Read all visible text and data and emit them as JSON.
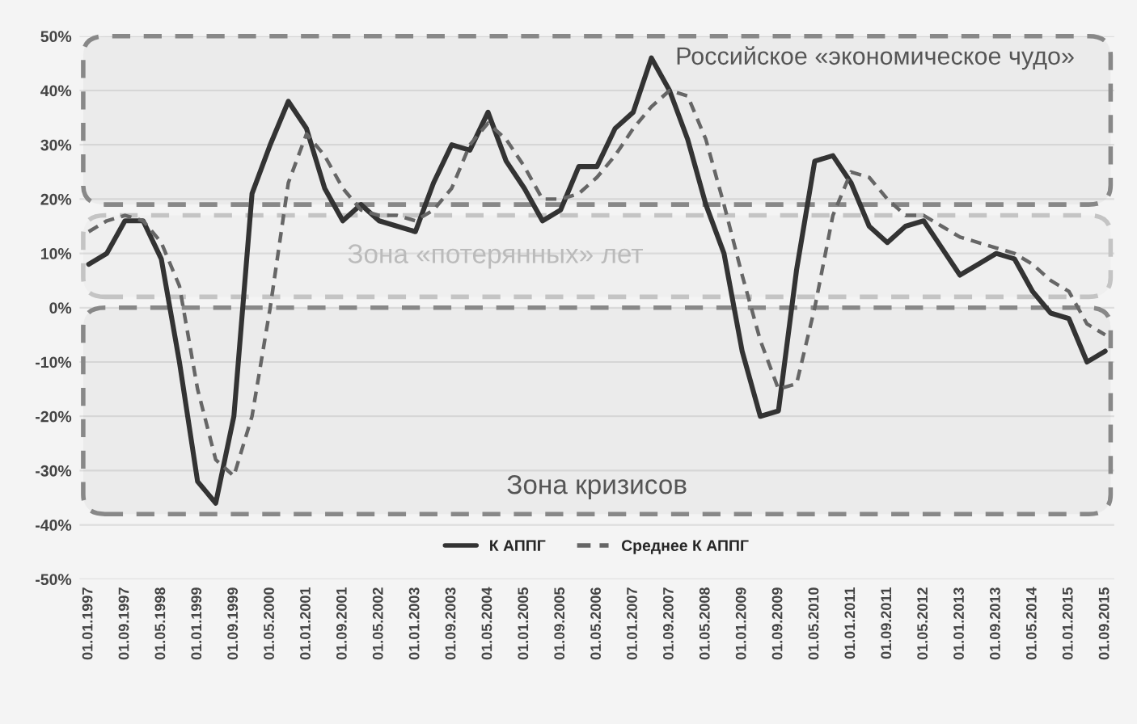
{
  "chart_data": {
    "type": "line",
    "categories": [
      "01.01.1997",
      null,
      "01.09.1997",
      null,
      "01.05.1998",
      null,
      "01.01.1999",
      null,
      "01.09.1999",
      null,
      "01.05.2000",
      null,
      "01.01.2001",
      null,
      "01.09.2001",
      null,
      "01.05.2002",
      null,
      "01.01.2003",
      null,
      "01.09.2003",
      null,
      "01.05.2004",
      null,
      "01.01.2005",
      null,
      "01.09.2005",
      null,
      "01.05.2006",
      null,
      "01.01.2007",
      null,
      "01.09.2007",
      null,
      "01.05.2008",
      null,
      "01.01.2009",
      null,
      "01.09.2009",
      null,
      "01.05.2010",
      null,
      "01.01.2011",
      null,
      "01.09.2011",
      null,
      "01.05.2012",
      null,
      "01.01.2013",
      null,
      "01.09.2013",
      null,
      "01.05.2014",
      null,
      "01.01.2015",
      null,
      "01.09.2015"
    ],
    "series": [
      {
        "name": "К АППГ",
        "color": "#333333",
        "line_style": "solid",
        "values": [
          8,
          10,
          16,
          16,
          9,
          -10,
          -32,
          -36,
          -20,
          21,
          30,
          38,
          33,
          22,
          16,
          19,
          16,
          15,
          14,
          23,
          30,
          29,
          36,
          27,
          22,
          16,
          18,
          26,
          26,
          33,
          36,
          46,
          40,
          31,
          19,
          10,
          -8,
          -20,
          -19,
          7,
          27,
          28,
          23,
          15,
          12,
          15,
          16,
          11,
          6,
          8,
          10,
          9,
          3,
          -1,
          -2,
          -10,
          -8
        ]
      },
      {
        "name": "Среднее К АППГ",
        "color": "#666666",
        "line_style": "dashed",
        "values": [
          14,
          16,
          17,
          16,
          12,
          4,
          -15,
          -28,
          -31,
          -20,
          0,
          23,
          32,
          28,
          22,
          18,
          17,
          17,
          16,
          18,
          22,
          30,
          34,
          31,
          26,
          20,
          20,
          21,
          24,
          28,
          33,
          37,
          40,
          39,
          31,
          19,
          6,
          -6,
          -15,
          -14,
          0,
          17,
          25,
          24,
          20,
          17,
          17,
          15,
          13,
          12,
          11,
          10,
          8,
          5,
          3,
          -3,
          -5
        ]
      }
    ],
    "ylim": [
      -50,
      50
    ],
    "yticks": [
      {
        "value": -50,
        "label": "-50%"
      },
      {
        "value": -40,
        "label": "-40%"
      },
      {
        "value": -30,
        "label": "-30%"
      },
      {
        "value": -20,
        "label": "-20%"
      },
      {
        "value": -10,
        "label": "-10%"
      },
      {
        "value": 0,
        "label": "0%"
      },
      {
        "value": 10,
        "label": "10%"
      },
      {
        "value": 20,
        "label": "20%"
      },
      {
        "value": 30,
        "label": "30%"
      },
      {
        "value": 40,
        "label": "40%"
      },
      {
        "value": 50,
        "label": "50%"
      }
    ],
    "bands": [
      {
        "axis": "y",
        "from": 19,
        "to": 50,
        "label": "Российское «экономическое чудо»",
        "color": "#888888"
      },
      {
        "axis": "y",
        "from": 2,
        "to": 17,
        "label": "Зона «потерянных» лет",
        "color": "#c4c4c4"
      },
      {
        "axis": "y",
        "from": -38,
        "to": 0,
        "label": "Зона кризисов",
        "color": "#888888"
      }
    ],
    "grid": "y",
    "legend": "bottom",
    "marker": "none"
  }
}
